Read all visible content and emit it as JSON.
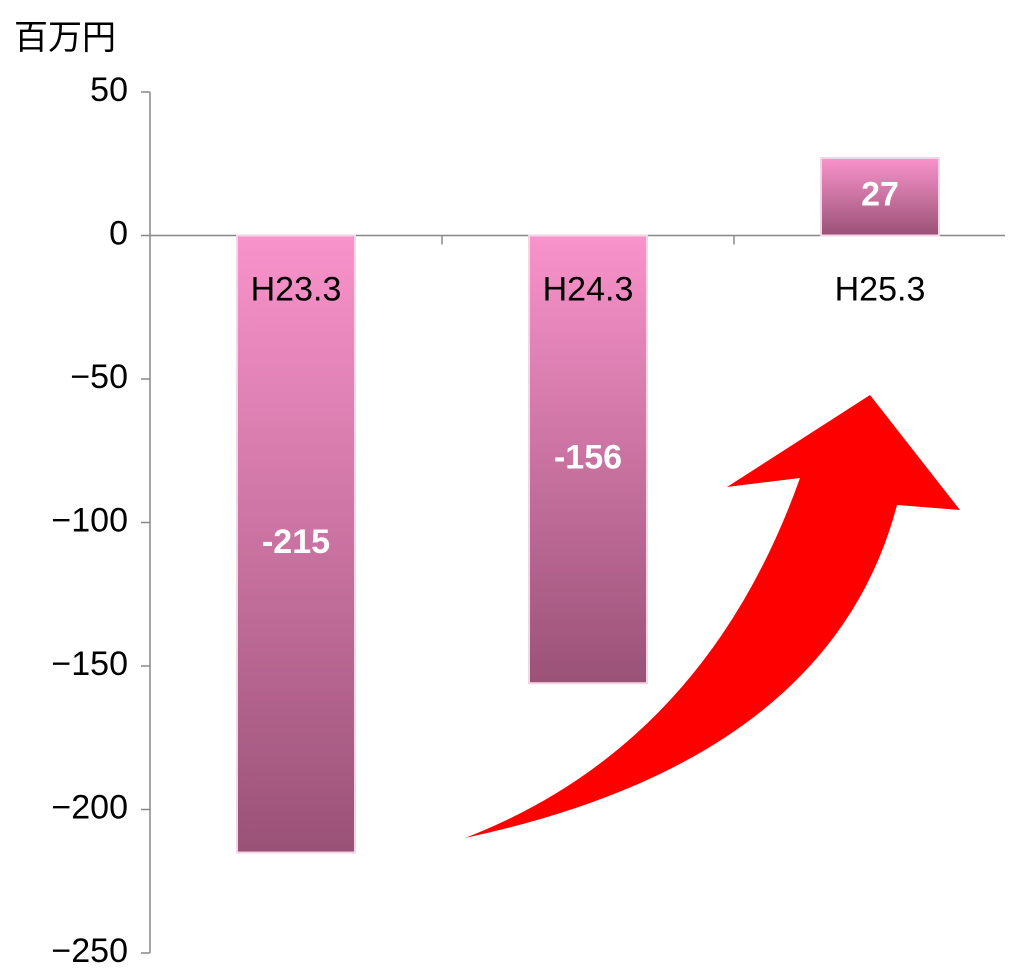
{
  "chart_data": {
    "type": "bar",
    "y_axis_label": "百万円",
    "categories": [
      "H23.3",
      "H24.3",
      "H25.3"
    ],
    "values": [
      -215,
      -156,
      27
    ],
    "color": "#e67fb8",
    "ylim": [
      -250,
      50
    ],
    "yticks": [
      {
        "value": -250,
        "label": "−250"
      },
      {
        "value": -200,
        "label": "−200"
      },
      {
        "value": -150,
        "label": "−150"
      },
      {
        "value": -100,
        "label": "−100"
      },
      {
        "value": -50,
        "label": "−50"
      },
      0,
      50
    ],
    "grid": false
  }
}
